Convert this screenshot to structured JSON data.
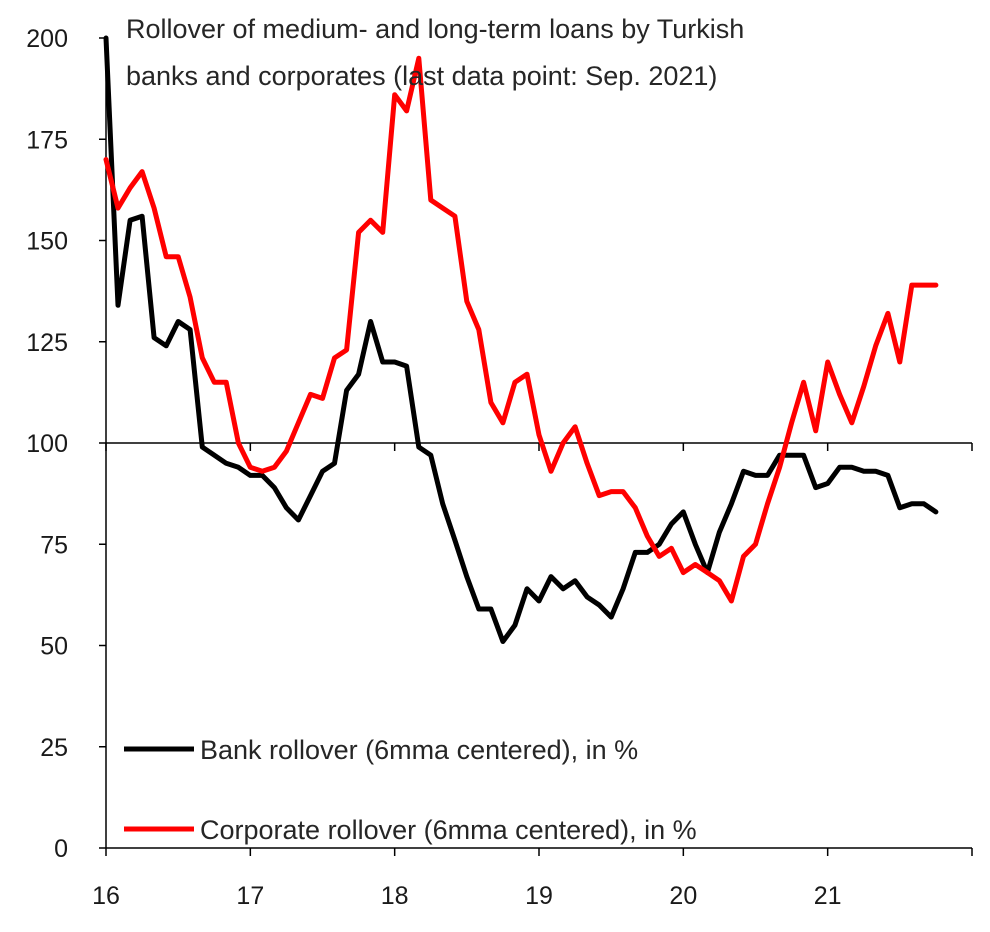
{
  "chart_data": {
    "type": "line",
    "title": "Rollover of medium- and long-term loans by Turkish banks and corporates (last data point: Sep. 2021)",
    "title_lines": [
      "Rollover of medium- and long-term loans by Turkish",
      "banks and corporates (last data point: Sep. 2021)"
    ],
    "xlabel": "",
    "ylabel": "",
    "ylim": [
      0,
      200
    ],
    "xlim": [
      2016,
      2022
    ],
    "yticks": [
      0,
      25,
      50,
      75,
      100,
      125,
      150,
      175,
      200
    ],
    "xticks": [
      {
        "value": 2016,
        "label": "16"
      },
      {
        "value": 2017,
        "label": "17"
      },
      {
        "value": 2018,
        "label": "18"
      },
      {
        "value": 2019,
        "label": "19"
      },
      {
        "value": 2020,
        "label": "20"
      },
      {
        "value": 2021,
        "label": "21"
      }
    ],
    "reference_line": 100,
    "grid": false,
    "legend_position": "bottom-left",
    "series": [
      {
        "name": "Bank rollover (6mma centered), in %",
        "color": "#000000",
        "x": [
          2016.0,
          2016.083,
          2016.167,
          2016.25,
          2016.333,
          2016.417,
          2016.5,
          2016.583,
          2016.667,
          2016.75,
          2016.833,
          2016.917,
          2017.0,
          2017.083,
          2017.167,
          2017.25,
          2017.333,
          2017.417,
          2017.5,
          2017.583,
          2017.667,
          2017.75,
          2017.833,
          2017.917,
          2018.0,
          2018.083,
          2018.167,
          2018.25,
          2018.333,
          2018.417,
          2018.5,
          2018.583,
          2018.667,
          2018.75,
          2018.833,
          2018.917,
          2019.0,
          2019.083,
          2019.167,
          2019.25,
          2019.333,
          2019.417,
          2019.5,
          2019.583,
          2019.667,
          2019.75,
          2019.833,
          2019.917,
          2020.0,
          2020.083,
          2020.167,
          2020.25,
          2020.333,
          2020.417,
          2020.5,
          2020.583,
          2020.667,
          2020.75,
          2020.833,
          2020.917,
          2021.0,
          2021.083,
          2021.167,
          2021.25,
          2021.333,
          2021.417,
          2021.5,
          2021.583,
          2021.667,
          2021.75
        ],
        "values": [
          200,
          134,
          155,
          156,
          126,
          124,
          130,
          128,
          99,
          97,
          95,
          94,
          92,
          92,
          89,
          84,
          81,
          87,
          93,
          95,
          113,
          117,
          130,
          120,
          120,
          119,
          99,
          97,
          85,
          76,
          67,
          59,
          59,
          51,
          55,
          64,
          61,
          67,
          64,
          66,
          62,
          60,
          57,
          64,
          73,
          73,
          75,
          80,
          83,
          75,
          68,
          78,
          85,
          93,
          92,
          92,
          97,
          97,
          97,
          89,
          90,
          94,
          94,
          93,
          93,
          92,
          84,
          85,
          85,
          83
        ]
      },
      {
        "name": "Corporate rollover (6mma centered), in %",
        "color": "#ff0000",
        "x": [
          2016.0,
          2016.083,
          2016.167,
          2016.25,
          2016.333,
          2016.417,
          2016.5,
          2016.583,
          2016.667,
          2016.75,
          2016.833,
          2016.917,
          2017.0,
          2017.083,
          2017.167,
          2017.25,
          2017.333,
          2017.417,
          2017.5,
          2017.583,
          2017.667,
          2017.75,
          2017.833,
          2017.917,
          2018.0,
          2018.083,
          2018.167,
          2018.25,
          2018.333,
          2018.417,
          2018.5,
          2018.583,
          2018.667,
          2018.75,
          2018.833,
          2018.917,
          2019.0,
          2019.083,
          2019.167,
          2019.25,
          2019.333,
          2019.417,
          2019.5,
          2019.583,
          2019.667,
          2019.75,
          2019.833,
          2019.917,
          2020.0,
          2020.083,
          2020.167,
          2020.25,
          2020.333,
          2020.417,
          2020.5,
          2020.583,
          2020.667,
          2020.75,
          2020.833,
          2020.917,
          2021.0,
          2021.083,
          2021.167,
          2021.25,
          2021.333,
          2021.417,
          2021.5,
          2021.583,
          2021.667,
          2021.75
        ],
        "values": [
          170,
          158,
          163,
          167,
          158,
          146,
          146,
          136,
          121,
          115,
          115,
          100,
          94,
          93,
          94,
          98,
          105,
          112,
          111,
          121,
          123,
          152,
          155,
          152,
          186,
          182,
          195,
          160,
          158,
          156,
          135,
          128,
          110,
          105,
          115,
          117,
          102,
          93,
          100,
          104,
          95,
          87,
          88,
          88,
          84,
          77,
          72,
          74,
          68,
          70,
          68,
          66,
          61,
          72,
          75,
          85,
          94,
          105,
          115,
          103,
          120,
          112,
          105,
          114,
          124,
          132,
          120,
          139,
          139,
          139
        ]
      }
    ]
  }
}
